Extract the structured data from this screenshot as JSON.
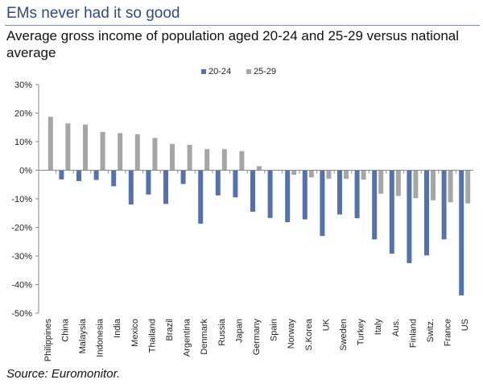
{
  "header": {
    "title": "EMs never had it so good",
    "subtitle": "Average gross income of population aged 20-24 and 25-29 versus national average"
  },
  "source": "Source: Euromonitor.",
  "chart_data": {
    "type": "bar",
    "title": "",
    "xlabel": "",
    "ylabel": "",
    "ylim": [
      -50,
      30
    ],
    "yticks": [
      30,
      20,
      10,
      0,
      -10,
      -20,
      -30,
      -40,
      -50
    ],
    "ytick_labels": [
      "30%",
      "20%",
      "10%",
      "0%",
      "-10%",
      "-20%",
      "-30%",
      "-40%",
      "-50%"
    ],
    "grid": false,
    "legend_position": "top-center",
    "categories": [
      "Philippines",
      "China",
      "Malaysia",
      "Indonesia",
      "India",
      "Mexico",
      "Thailand",
      "Brazil",
      "Argentina",
      "Denmark",
      "Russia",
      "Japan",
      "Germany",
      "Spain",
      "Norway",
      "S.Korea",
      "UK",
      "Sweden",
      "Turkey",
      "Italy",
      "Aus.",
      "Finland",
      "Switz.",
      "France",
      "US"
    ],
    "series": [
      {
        "name": "20-24",
        "color": "#5472b0",
        "values": [
          0,
          -3.2,
          -3.8,
          -3.4,
          -5.6,
          -12.0,
          -8.5,
          -11.8,
          -4.8,
          -18.7,
          -8.8,
          -9.5,
          -14.5,
          -16.7,
          -18.2,
          -17.2,
          -23.0,
          -15.5,
          -16.8,
          -24.2,
          -29.2,
          -32.5,
          -29.8,
          -24.2,
          -43.8
        ]
      },
      {
        "name": "25-29",
        "color": "#a6a6a6",
        "values": [
          18.7,
          16.4,
          16.0,
          13.4,
          13.0,
          12.6,
          11.3,
          9.2,
          8.9,
          7.4,
          7.4,
          6.7,
          1.4,
          0,
          -1.6,
          -2.5,
          -3.0,
          -3.0,
          -3.3,
          -8.2,
          -9.0,
          -9.8,
          -10.5,
          -11.2,
          -11.6
        ]
      }
    ]
  }
}
